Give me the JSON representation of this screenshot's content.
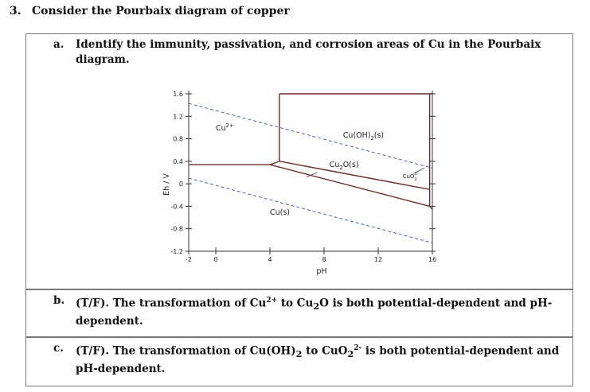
{
  "question": {
    "number": "3.",
    "title": "Consider the Pourbaix diagram of copper"
  },
  "parts": [
    {
      "label": "a.",
      "text": "Identify the immunity, passivation, and corrosion areas of Cu in the Pourbaix diagram."
    },
    {
      "label": "b.",
      "text_pre": "(T/F). The transformation of Cu",
      "sup1": "2+",
      "text_mid": " to Cu",
      "sub1": "2",
      "text_post": "O is both potential-dependent and pH-dependent."
    },
    {
      "label": "c.",
      "text_pre": "(T/F). The transformation of Cu(OH)",
      "sub1": "2",
      "text_mid": " to CuO",
      "sub2": "2",
      "sup2": "2-",
      "text_post": " is both potential-dependent and pH-dependent."
    }
  ],
  "chart_data": {
    "type": "diagram",
    "xlabel": "pH",
    "ylabel": "Eh / V",
    "xlim": [
      -2,
      16
    ],
    "ylim": [
      -1.2,
      1.6
    ],
    "x_ticks": [
      -2,
      0,
      4,
      8,
      12,
      16
    ],
    "y_ticks": [
      1.6,
      1.2,
      0.8,
      0.4,
      0,
      -0.4,
      -0.8,
      -1.2
    ],
    "regions": [
      {
        "label": "Cu",
        "sup": "2+",
        "x": 0.0,
        "y": 0.95
      },
      {
        "label": "Cu(OH)",
        "sub": "2",
        "suffix": "(s)",
        "x": 9.4,
        "y": 0.82
      },
      {
        "label": "Cu",
        "sub": "2",
        "suffix": "O(s)",
        "x": 8.4,
        "y": 0.3
      },
      {
        "label": "CuO",
        "sub": "2",
        "sup": "2-",
        "x": 13.8,
        "y": 0.1
      },
      {
        "label": "Cu(s)",
        "x": 4.0,
        "y": -0.55
      }
    ],
    "boundaries": [
      [
        [
          -2.0,
          0.34
        ],
        [
          4.0,
          0.34
        ]
      ],
      [
        [
          4.0,
          0.34
        ],
        [
          4.7,
          0.4
        ]
      ],
      [
        [
          4.0,
          0.34
        ],
        [
          15.8,
          -0.4
        ]
      ],
      [
        [
          4.7,
          0.4
        ],
        [
          15.8,
          -0.1
        ]
      ],
      [
        [
          15.8,
          -0.1
        ],
        [
          15.8,
          -0.4
        ]
      ],
      [
        [
          15.8,
          -0.4
        ],
        [
          16.0,
          -0.45
        ]
      ],
      [
        [
          4.7,
          0.4
        ],
        [
          4.7,
          1.6
        ]
      ],
      [
        [
          15.8,
          -0.1
        ],
        [
          15.8,
          1.6
        ]
      ],
      [
        [
          4.7,
          1.6
        ],
        [
          15.8,
          1.6
        ]
      ],
      [
        [
          15.8,
          1.6
        ],
        [
          16.0,
          1.6
        ]
      ]
    ],
    "water_lines": [
      [
        [
          -2.0,
          1.43
        ],
        [
          16.0,
          0.28
        ]
      ],
      [
        [
          -2.0,
          0.1
        ],
        [
          16.0,
          -1.05
        ]
      ]
    ]
  }
}
